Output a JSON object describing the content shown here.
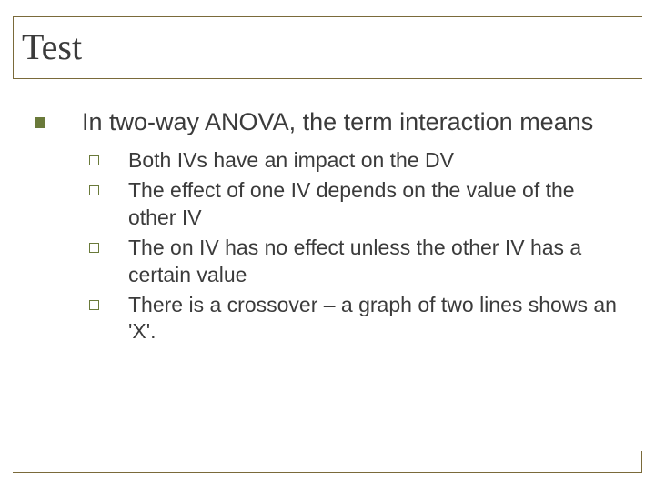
{
  "slide": {
    "title": "Test",
    "title_fontsize": 40,
    "title_color": "#3b3b3b",
    "border_color": "#7a6a3a",
    "background_color": "#ffffff",
    "bullet_fill_color": "#6a7a3a",
    "bullet_outline_color": "#6a7a3a",
    "body_text_color": "#3b3b3b",
    "lvl1_fontsize": 27,
    "lvl2_fontsize": 23,
    "lvl1": {
      "text": "In two-way ANOVA, the term interaction means"
    },
    "lvl2_items": [
      {
        "text": "Both IVs have an impact on the DV"
      },
      {
        "text": "The effect of one IV depends on the value of the other IV"
      },
      {
        "text": "The on IV has no effect unless the other IV has a certain value"
      },
      {
        "text": "There is a crossover – a graph of two lines shows an 'X'."
      }
    ]
  }
}
